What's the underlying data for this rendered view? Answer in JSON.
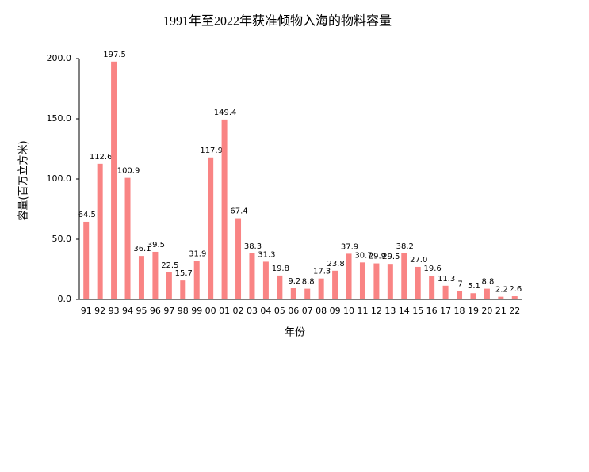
{
  "chart_data": {
    "type": "bar",
    "title": "1991年至2022年获准倾物入海的物料容量",
    "x_label": "年份",
    "y_label": "容量(百万立方米)",
    "categories": [
      "91",
      "92",
      "93",
      "94",
      "95",
      "96",
      "97",
      "98",
      "99",
      "00",
      "01",
      "02",
      "03",
      "04",
      "05",
      "06",
      "07",
      "08",
      "09",
      "10",
      "11",
      "12",
      "13",
      "14",
      "15",
      "16",
      "17",
      "18",
      "19",
      "20",
      "21",
      "22"
    ],
    "values": [
      64.5,
      112.6,
      197.5,
      100.9,
      36.1,
      39.5,
      22.5,
      15.7,
      31.9,
      117.9,
      149.4,
      67.4,
      38.3,
      31.3,
      19.8,
      9.2,
      8.8,
      17.3,
      23.8,
      37.9,
      30.7,
      29.9,
      29.5,
      38.2,
      27.0,
      19.6,
      11.3,
      7,
      5.1,
      8.8,
      2.2,
      2.6
    ],
    "value_labels": [
      "64.5",
      "112.6",
      "197.5",
      "100.9",
      "36.1",
      "39.5",
      "22.5",
      "15.7",
      "31.9",
      "117.9",
      "149.4",
      "67.4",
      "38.3",
      "31.3",
      "19.8",
      "9.2",
      "8.8",
      "17.3",
      "23.8",
      "37.9",
      "30.7",
      "29.9",
      "29.5",
      "38.2",
      "27.0",
      "19.6",
      "11.3",
      "7",
      "5.1",
      "8.8",
      "2.2",
      "2.6"
    ],
    "color": "#f98484",
    "ylim": [
      0,
      200
    ],
    "yticks": [
      {
        "value": 0,
        "label": "0.0"
      },
      {
        "value": 50,
        "label": "50.0"
      },
      {
        "value": 100,
        "label": "100.0"
      },
      {
        "value": 150,
        "label": "150.0"
      },
      {
        "value": 200,
        "label": "200.0"
      }
    ],
    "grid": false
  }
}
